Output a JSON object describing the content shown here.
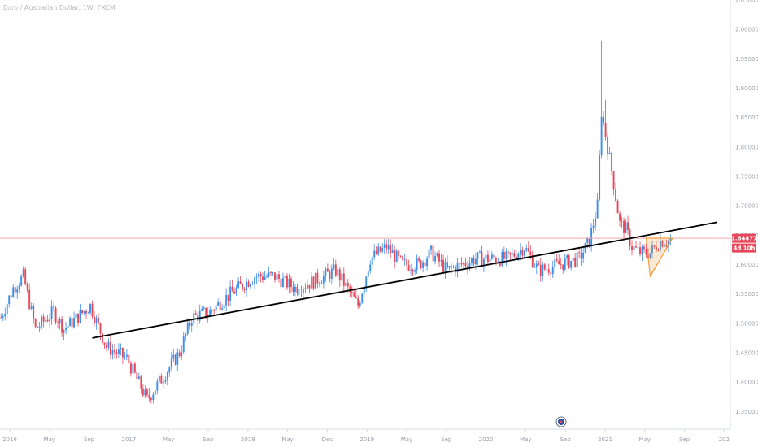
{
  "header": {
    "title": "Euro / Australian Dollar, 1W, FXCM"
  },
  "colors": {
    "up": "#3d8ee8",
    "down": "#e8475a",
    "price_line": "#f4a6ad",
    "tag_bg": "#e8475a",
    "trendline": "#000000",
    "pattern": "#f29b38",
    "axis_text": "#9aa0aa",
    "axis_line": "#d9dce1"
  },
  "price_tag": {
    "price": "1.64477",
    "countdown": "4d 10h"
  },
  "event_icon": "flag-eu-icon",
  "chart_data": {
    "type": "candlestick",
    "title": "Euro / Australian Dollar, 1W, FXCM",
    "xlabel": "",
    "ylabel": "",
    "ylim": [
      1.32,
      2.05
    ],
    "y_ticks": [
      "2.05000",
      "2.00000",
      "1.95000",
      "1.90000",
      "1.85000",
      "1.80000",
      "1.75000",
      "1.70000",
      "1.65000",
      "1.60000",
      "1.55000",
      "1.50000",
      "1.45000",
      "1.40000",
      "1.35000"
    ],
    "x_ticks": [
      "2016",
      "May",
      "Sep",
      "2017",
      "May",
      "Sep",
      "2018",
      "May",
      "Dec",
      "2019",
      "May",
      "Sep",
      "2020",
      "May",
      "Sep",
      "2021",
      "May",
      "Sep",
      "202"
    ],
    "current_price": 1.64477,
    "anchors": [
      [
        0,
        1.51
      ],
      [
        6,
        1.56
      ],
      [
        11,
        1.58
      ],
      [
        17,
        1.49
      ],
      [
        26,
        1.52
      ],
      [
        31,
        1.49
      ],
      [
        44,
        1.53
      ],
      [
        52,
        1.46
      ],
      [
        62,
        1.44
      ],
      [
        72,
        1.37
      ],
      [
        80,
        1.41
      ],
      [
        88,
        1.45
      ],
      [
        94,
        1.51
      ],
      [
        103,
        1.52
      ],
      [
        113,
        1.55
      ],
      [
        125,
        1.58
      ],
      [
        135,
        1.58
      ],
      [
        145,
        1.56
      ],
      [
        153,
        1.57
      ],
      [
        165,
        1.59
      ],
      [
        176,
        1.53
      ],
      [
        182,
        1.61
      ],
      [
        190,
        1.63
      ],
      [
        198,
        1.6
      ],
      [
        206,
        1.6
      ],
      [
        212,
        1.62
      ],
      [
        220,
        1.59
      ],
      [
        234,
        1.61
      ],
      [
        243,
        1.61
      ],
      [
        250,
        1.61
      ],
      [
        258,
        1.63
      ],
      [
        265,
        1.59
      ],
      [
        275,
        1.6
      ],
      [
        285,
        1.61
      ],
      [
        290,
        1.64
      ],
      [
        294,
        1.7
      ],
      [
        296,
        1.86
      ],
      [
        301,
        1.76
      ],
      [
        305,
        1.67
      ],
      [
        308,
        1.66
      ],
      [
        311,
        1.63
      ],
      [
        315,
        1.62
      ],
      [
        320,
        1.62
      ],
      [
        325,
        1.64
      ],
      [
        330,
        1.64
      ]
    ],
    "spikes": [
      {
        "index": 296,
        "high": 1.98
      },
      {
        "index": 298,
        "high": 1.88
      }
    ],
    "trendline": [
      [
        45,
        1.475
      ],
      [
        353,
        1.672
      ]
    ],
    "horizontal_line": 1.64477,
    "pattern": [
      [
        320,
        1.58
      ],
      [
        318,
        1.645
      ],
      [
        331,
        1.645
      ]
    ]
  }
}
